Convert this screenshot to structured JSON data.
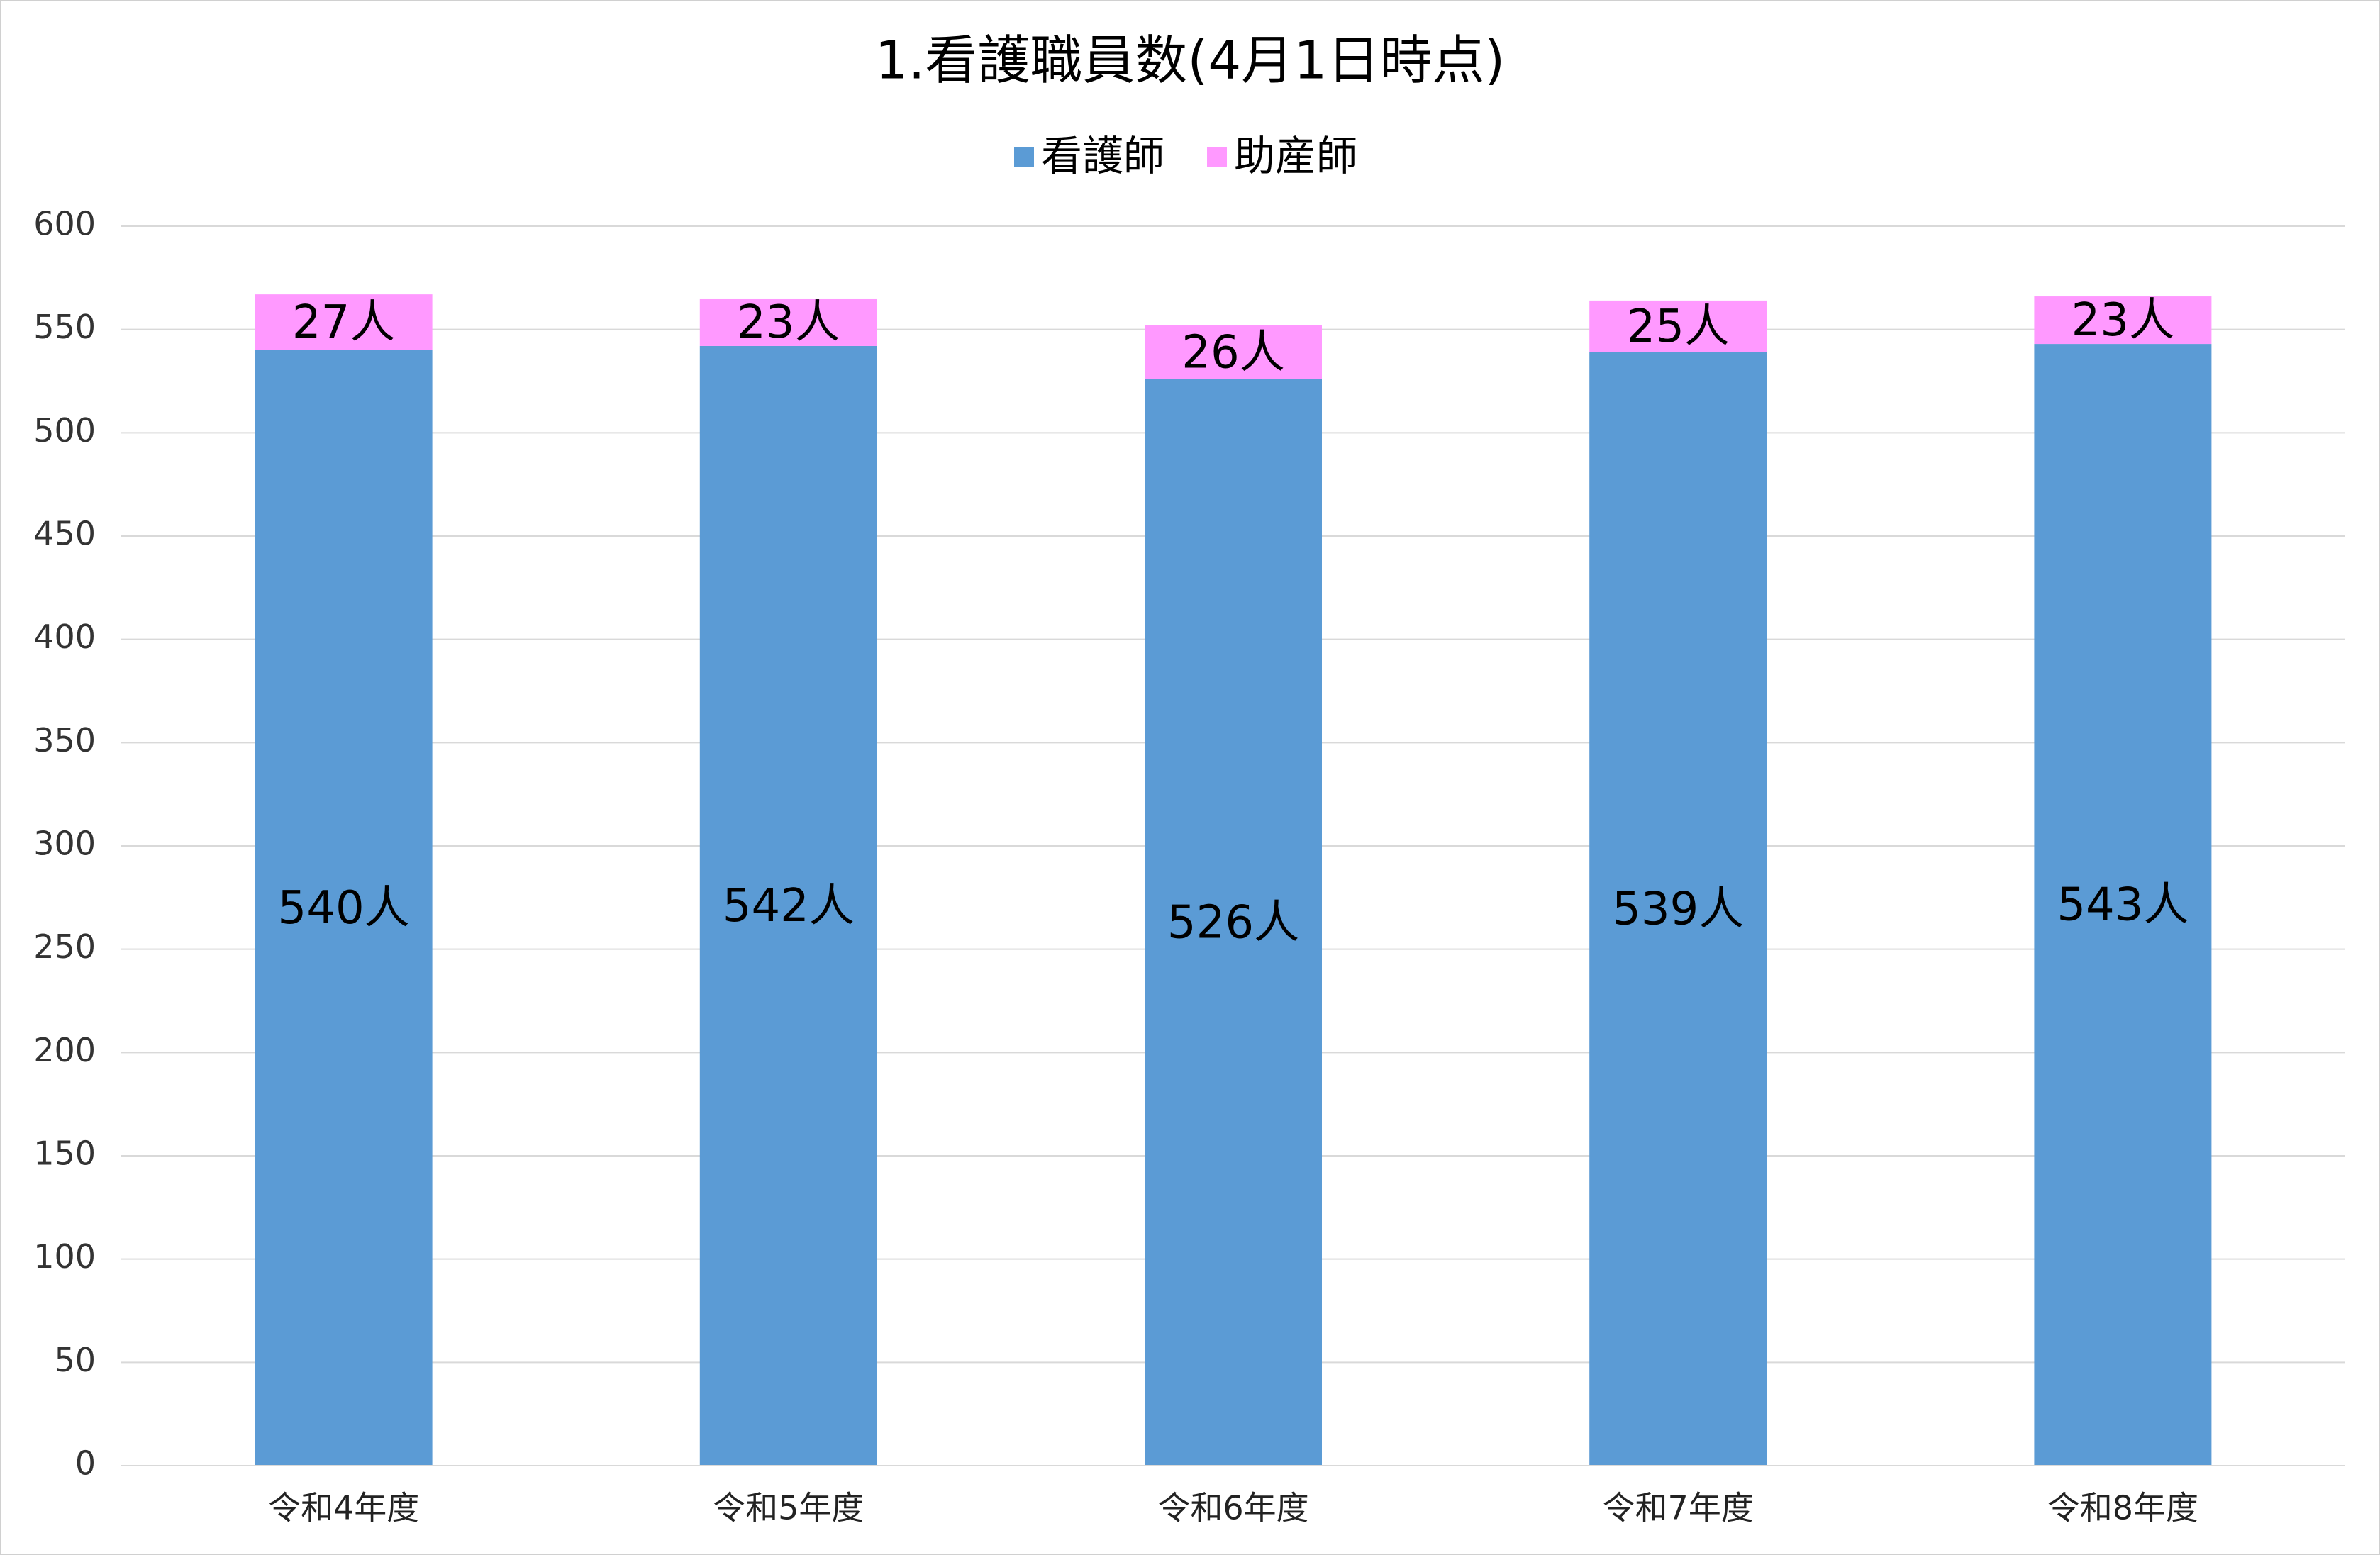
{
  "chart_data": {
    "type": "stacked_bar",
    "title": "1.看護職員数(4月1日時点)",
    "categories": [
      "令和4年度",
      "令和5年度",
      "令和6年度",
      "令和7年度",
      "令和8年度"
    ],
    "series": [
      {
        "name": "看護師",
        "color": "#5b9bd5",
        "values": [
          540,
          542,
          526,
          539,
          543
        ],
        "value_labels": [
          "540人",
          "542人",
          "526人",
          "539人",
          "543人"
        ]
      },
      {
        "name": "助産師",
        "color": "#ff99ff",
        "values": [
          27,
          23,
          26,
          25,
          23
        ],
        "value_labels": [
          "27人",
          "23人",
          "26人",
          "25人",
          "23人"
        ]
      }
    ],
    "ylim": [
      0,
      600
    ],
    "yticks": [
      0,
      50,
      100,
      150,
      200,
      250,
      300,
      350,
      400,
      450,
      500,
      550,
      600
    ],
    "grid": true,
    "legend": "top"
  }
}
